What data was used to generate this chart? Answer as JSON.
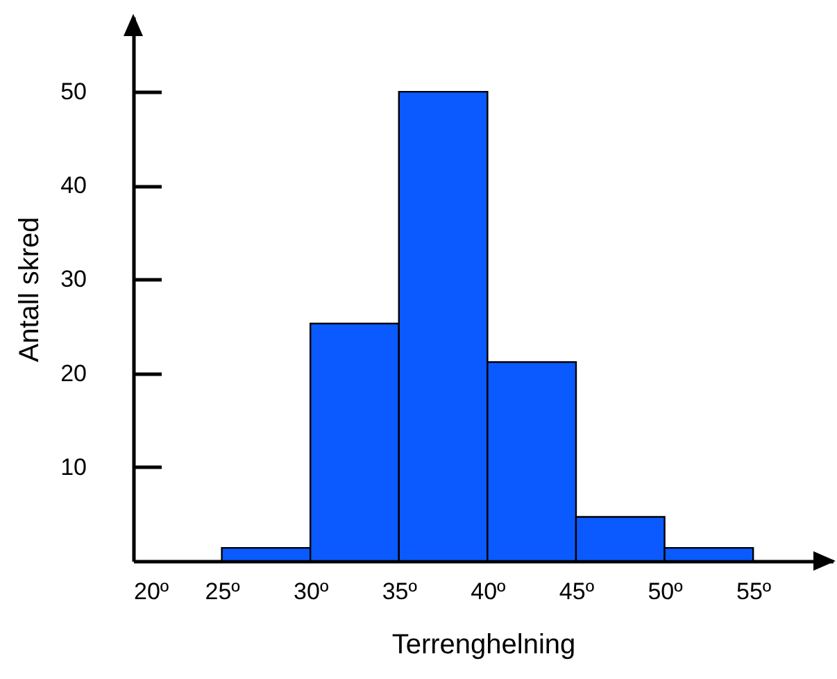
{
  "chart_data": {
    "type": "histogram",
    "xlabel": "Terrenghelning",
    "ylabel": "Antall skred",
    "bins": [
      25,
      30,
      35,
      40,
      45,
      50,
      55
    ],
    "values": [
      1.4,
      25.3,
      50,
      21.2,
      4.7,
      1.4
    ],
    "color": "#0a5aff",
    "xlim": [
      20,
      59.5
    ],
    "ylim": [
      0,
      58
    ],
    "xticks": [
      {
        "value": 20,
        "label": "20º"
      },
      {
        "value": 25,
        "label": "25º"
      },
      {
        "value": 30,
        "label": "30º"
      },
      {
        "value": 35,
        "label": "35º"
      },
      {
        "value": 40,
        "label": "40º"
      },
      {
        "value": 45,
        "label": "45º"
      },
      {
        "value": 50,
        "label": "50º"
      },
      {
        "value": 55,
        "label": "55º"
      }
    ],
    "yticks": [
      10,
      20,
      30,
      40,
      50
    ],
    "grid": false
  }
}
